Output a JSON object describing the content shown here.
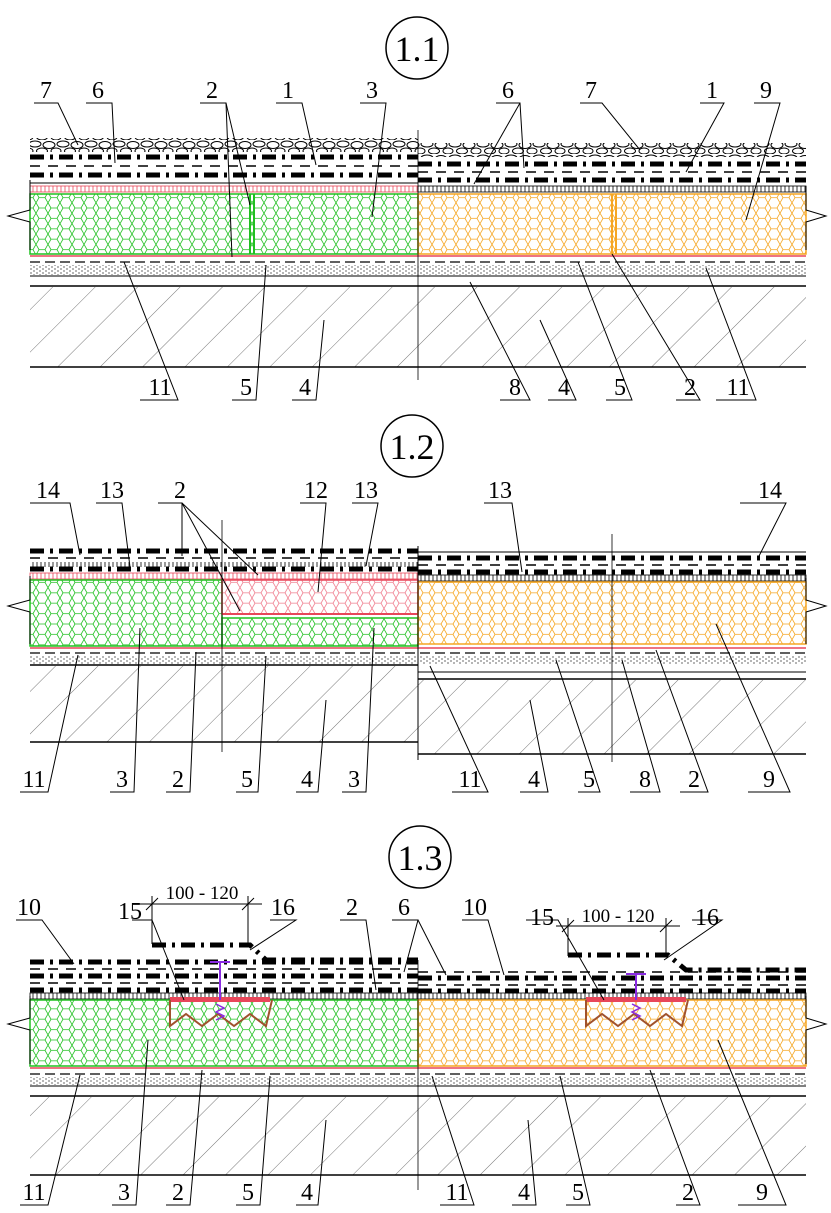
{
  "sections": [
    {
      "title": "1.1",
      "top_labels": [
        "7",
        "6",
        "2",
        "1",
        "3",
        "6",
        "7",
        "1",
        "9"
      ],
      "bottom_labels": [
        "11",
        "5",
        "4",
        "8",
        "4",
        "5",
        "2",
        "11"
      ]
    },
    {
      "title": "1.2",
      "top_labels": [
        "14",
        "13",
        "2",
        "12",
        "13",
        "13",
        "14"
      ],
      "bottom_labels": [
        "11",
        "3",
        "2",
        "5",
        "4",
        "3",
        "11",
        "4",
        "5",
        "8",
        "2",
        "9"
      ]
    },
    {
      "title": "1.3",
      "dimensions": [
        "100 - 120",
        "100 - 120"
      ],
      "top_labels": [
        "10",
        "15",
        "16",
        "2",
        "6",
        "10",
        "15",
        "16"
      ],
      "bottom_labels": [
        "11",
        "3",
        "2",
        "5",
        "4",
        "11",
        "4",
        "5",
        "2",
        "9"
      ]
    }
  ],
  "colors": {
    "ink": "#000000",
    "insulation_green": "#21c021",
    "insulation_orange": "#f5a623",
    "vapor_barrier_red": "#e8475a",
    "insulation_pink": "#f07f90",
    "anchor_purple": "#8a2be2",
    "bracket_brown": "#a0522d",
    "hatch_gray": "#555555"
  },
  "icons": [
    "hexagon-insulation-pattern",
    "gravel-pattern",
    "concrete-hatch-pattern",
    "break-line-symbol",
    "fastener-anchor"
  ]
}
